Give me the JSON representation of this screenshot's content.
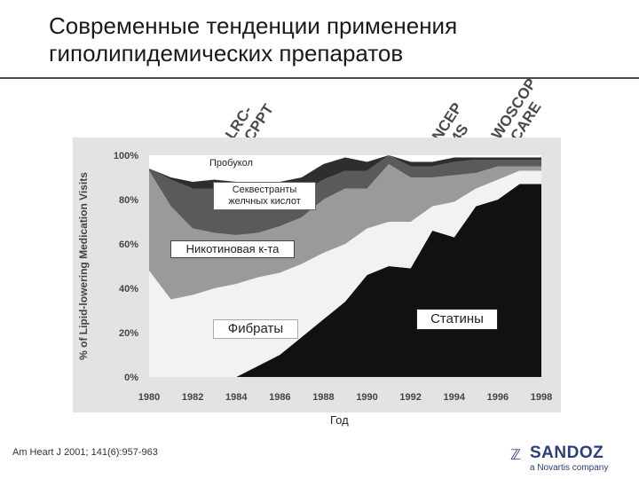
{
  "slide": {
    "title": "Современные тенденции применения гиполипидемических препаратов",
    "citation": "Am Heart J 2001; 141(6):957-963",
    "x_axis_title": "Год"
  },
  "trials": [
    {
      "lines": [
        "LRC-",
        "CPPT"
      ]
    },
    {
      "lines": [
        "NCEP",
        "4S"
      ]
    },
    {
      "lines": [
        "WOSCOP",
        "CARE"
      ]
    }
  ],
  "series_labels": {
    "probucol": "Пробукол",
    "sequestrants_line1": "Секвестранты",
    "sequestrants_line2": "желчных кислот",
    "niacin": "Никотиновая к-та",
    "fibrates": "Фибраты",
    "statins": "Статины"
  },
  "logo": {
    "brand": "SANDOZ",
    "tagline": "a Novartis company",
    "icon": "sandoz-logo-icon"
  },
  "chart_data": {
    "type": "area",
    "stacked": true,
    "ylabel": "% of Lipid-lowering Medication Visits",
    "xlabel": "Год",
    "ylim": [
      0,
      100
    ],
    "yticks": [
      "0%",
      "20%",
      "40%",
      "60%",
      "80%",
      "100%"
    ],
    "xticks": [
      "1980",
      "1982",
      "1984",
      "1986",
      "1988",
      "1990",
      "1992",
      "1994",
      "1996",
      "1998"
    ],
    "x": [
      1980,
      1981,
      1982,
      1983,
      1984,
      1985,
      1986,
      1987,
      1988,
      1989,
      1990,
      1991,
      1992,
      1993,
      1994,
      1995,
      1996,
      1997,
      1998
    ],
    "series": [
      {
        "name": "Статины",
        "color": "#111111",
        "values": [
          0,
          0,
          0,
          0,
          0,
          5,
          10,
          18,
          26,
          34,
          46,
          50,
          49,
          66,
          63,
          77,
          80,
          87,
          87
        ]
      },
      {
        "name": "Фибраты",
        "color": "#f2f2f2",
        "values": [
          48,
          35,
          37,
          40,
          42,
          40,
          37,
          33,
          30,
          26,
          21,
          20,
          21,
          11,
          16,
          8,
          9,
          6,
          6
        ]
      },
      {
        "name": "Никотиновая к-та",
        "color": "#9a9a9a",
        "values": [
          45,
          42,
          30,
          25,
          22,
          20,
          21,
          21,
          24,
          25,
          18,
          26,
          20,
          13,
          12,
          7,
          6,
          2,
          2
        ]
      },
      {
        "name": "Секвестранты желчных кислот",
        "color": "#5a5a5a",
        "values": [
          1,
          12,
          18,
          20,
          16,
          13,
          12,
          11,
          9,
          8,
          8,
          4,
          5,
          5,
          6,
          6,
          3,
          3,
          3
        ]
      },
      {
        "name": "Пробукол",
        "color": "#2e2e2e",
        "values": [
          0,
          1,
          3,
          4,
          8,
          10,
          8,
          7,
          7,
          6,
          4,
          3,
          2,
          2,
          2,
          1,
          1,
          1,
          1
        ]
      }
    ]
  }
}
